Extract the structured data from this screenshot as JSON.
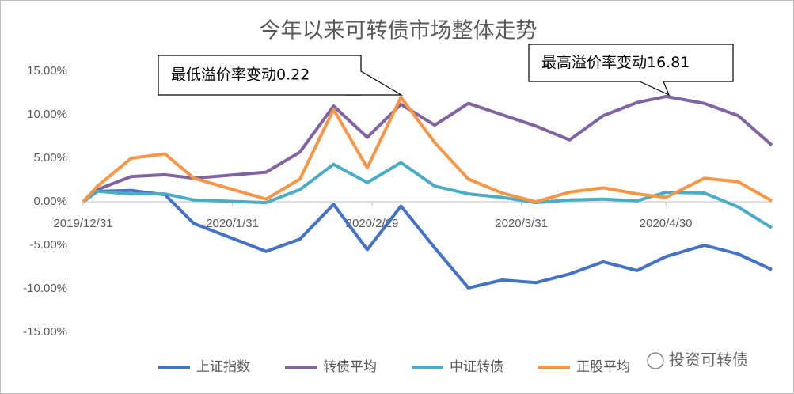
{
  "chart_data": {
    "type": "line",
    "title": "今年以来可转债市场整体走势",
    "x": [
      "2019/12/31",
      "2020/1/3",
      "2020/1/10",
      "2020/1/17",
      "2020/1/23",
      "2020/2/7",
      "2020/2/14",
      "2020/2/21",
      "2020/2/28",
      "2020/3/6",
      "2020/3/13",
      "2020/3/20",
      "2020/3/27",
      "2020/4/3",
      "2020/4/10",
      "2020/4/17",
      "2020/4/24",
      "2020/4/30",
      "2020/5/8",
      "2020/5/15",
      "2020/5/22"
    ],
    "xlim": [
      "2019/12/31",
      "2020/5/22"
    ],
    "xticks": [
      "2019/12/31",
      "2020/1/31",
      "2020/2/29",
      "2020/3/31",
      "2020/4/30"
    ],
    "ylim": [
      -18,
      18
    ],
    "yticks": [
      {
        "value": 15,
        "label": "15.00%"
      },
      {
        "value": 10,
        "label": "10.00%"
      },
      {
        "value": 5,
        "label": "5.00%"
      },
      {
        "value": 0,
        "label": "0.00%"
      },
      {
        "value": -5,
        "label": "-5.00%"
      },
      {
        "value": -10,
        "label": "-10.00%"
      },
      {
        "value": -15,
        "label": "-15.00%"
      }
    ],
    "grid": false,
    "series": [
      {
        "name": "上证指数",
        "color": "#4472c4",
        "values": [
          0,
          1.2,
          1.3,
          0.8,
          -2.5,
          -5.7,
          -4.3,
          -0.3,
          -5.5,
          -0.5,
          -5.3,
          -9.9,
          -9.0,
          -9.3,
          -8.3,
          -6.9,
          -7.9,
          -6.3,
          -5.0,
          -6.0,
          -7.8
        ]
      },
      {
        "name": "转债平均",
        "color": "#8064a2",
        "values": [
          0,
          1.4,
          2.9,
          3.1,
          2.7,
          3.4,
          5.7,
          11.0,
          7.4,
          11.2,
          8.8,
          11.3,
          10.0,
          8.7,
          7.1,
          9.9,
          11.4,
          12.1,
          11.3,
          9.9,
          6.5
        ]
      },
      {
        "name": "中证转债",
        "color": "#4bacc6",
        "values": [
          0,
          1.2,
          0.9,
          0.9,
          0.2,
          -0.1,
          1.4,
          4.3,
          2.2,
          4.5,
          1.8,
          0.9,
          0.5,
          -0.1,
          0.2,
          0.3,
          0.1,
          1.1,
          1.0,
          -0.6,
          -3.0
        ]
      },
      {
        "name": "正股平均",
        "color": "#f79646",
        "values": [
          0,
          1.8,
          5.0,
          5.5,
          2.7,
          0.3,
          2.6,
          10.6,
          3.9,
          12.0,
          6.8,
          2.6,
          1.0,
          0.0,
          1.1,
          1.6,
          0.9,
          0.5,
          2.7,
          2.3,
          0.1
        ]
      }
    ],
    "annotations": [
      "最低溢价率变动0.22",
      "最高溢价率变动16.81"
    ],
    "watermark": "投资可转债"
  }
}
